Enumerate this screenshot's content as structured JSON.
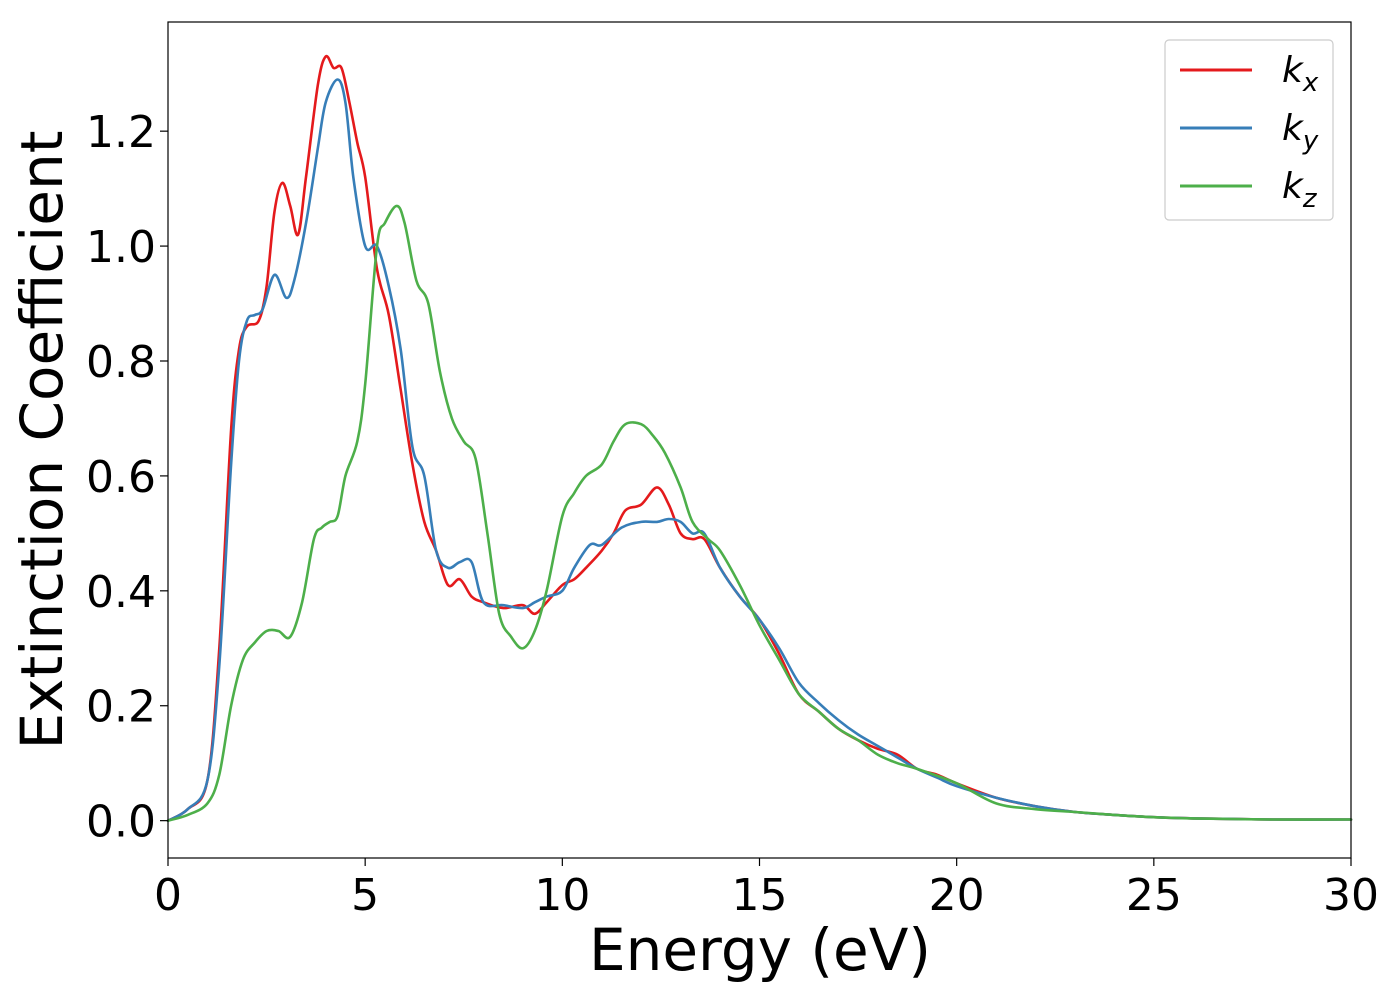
{
  "chart_data": {
    "type": "line",
    "title": "",
    "xlabel": "Energy (eV)",
    "ylabel": "Extinction Coefficient",
    "xlim": [
      0,
      30
    ],
    "ylim": [
      -0.065,
      1.39
    ],
    "xticks": [
      0,
      5,
      10,
      15,
      20,
      25,
      30
    ],
    "yticks": [
      0.0,
      0.2,
      0.4,
      0.6,
      0.8,
      1.0,
      1.2
    ],
    "xtick_labels": [
      "0",
      "5",
      "10",
      "15",
      "20",
      "25",
      "30"
    ],
    "ytick_labels": [
      "0.0",
      "0.2",
      "0.4",
      "0.6",
      "0.8",
      "1.0",
      "1.2"
    ],
    "grid": false,
    "legend_position": "top-right",
    "series": [
      {
        "name": "kx",
        "base": "k",
        "sub": "x",
        "color": "#e41a1c",
        "x": [
          0,
          0.5,
          1.0,
          1.3,
          1.6,
          1.8,
          2.0,
          2.3,
          2.5,
          2.7,
          2.9,
          3.1,
          3.3,
          3.5,
          3.8,
          4.0,
          4.2,
          4.4,
          4.6,
          4.8,
          5.0,
          5.3,
          5.6,
          5.9,
          6.2,
          6.5,
          6.8,
          7.1,
          7.4,
          7.7,
          8.0,
          8.5,
          9.0,
          9.3,
          9.6,
          10.0,
          10.3,
          10.6,
          11.0,
          11.3,
          11.6,
          12.0,
          12.4,
          12.7,
          13.0,
          13.3,
          13.6,
          14.0,
          14.5,
          15.0,
          15.5,
          16.0,
          16.5,
          17.0,
          17.5,
          18.0,
          18.5,
          19.0,
          19.5,
          20.0,
          21.0,
          22.0,
          23.0,
          24.0,
          25.0,
          26.0,
          27.0,
          28.0,
          30.0
        ],
        "y": [
          0.0,
          0.02,
          0.07,
          0.3,
          0.68,
          0.82,
          0.86,
          0.87,
          0.93,
          1.06,
          1.11,
          1.07,
          1.02,
          1.12,
          1.28,
          1.33,
          1.31,
          1.31,
          1.25,
          1.18,
          1.12,
          0.96,
          0.88,
          0.75,
          0.62,
          0.52,
          0.47,
          0.41,
          0.42,
          0.39,
          0.38,
          0.37,
          0.375,
          0.36,
          0.38,
          0.41,
          0.42,
          0.44,
          0.47,
          0.5,
          0.54,
          0.55,
          0.58,
          0.55,
          0.5,
          0.49,
          0.49,
          0.44,
          0.39,
          0.35,
          0.29,
          0.22,
          0.19,
          0.16,
          0.14,
          0.125,
          0.115,
          0.09,
          0.08,
          0.065,
          0.04,
          0.025,
          0.015,
          0.01,
          0.006,
          0.004,
          0.003,
          0.002,
          0.002
        ]
      },
      {
        "name": "ky",
        "base": "k",
        "sub": "y",
        "color": "#377eb8",
        "x": [
          0,
          0.5,
          1.0,
          1.3,
          1.6,
          1.8,
          2.0,
          2.2,
          2.4,
          2.7,
          3.0,
          3.2,
          3.5,
          3.8,
          4.0,
          4.3,
          4.5,
          4.7,
          5.0,
          5.3,
          5.6,
          5.9,
          6.2,
          6.5,
          6.8,
          7.1,
          7.4,
          7.7,
          8.0,
          8.5,
          9.0,
          9.3,
          9.6,
          10.0,
          10.3,
          10.7,
          11.0,
          11.5,
          12.0,
          12.4,
          12.7,
          13.0,
          13.3,
          13.6,
          14.0,
          14.5,
          15.0,
          15.5,
          16.0,
          16.5,
          17.0,
          17.5,
          18.0,
          18.5,
          19.0,
          19.5,
          20.0,
          21.0,
          22.0,
          23.0,
          24.0,
          25.0,
          26.0,
          27.0,
          28.0,
          30.0
        ],
        "y": [
          0.0,
          0.02,
          0.07,
          0.27,
          0.62,
          0.8,
          0.87,
          0.88,
          0.89,
          0.95,
          0.91,
          0.94,
          1.04,
          1.17,
          1.25,
          1.29,
          1.25,
          1.12,
          1.0,
          1.0,
          0.93,
          0.82,
          0.65,
          0.6,
          0.47,
          0.44,
          0.45,
          0.45,
          0.38,
          0.375,
          0.37,
          0.38,
          0.39,
          0.4,
          0.44,
          0.48,
          0.48,
          0.51,
          0.52,
          0.52,
          0.525,
          0.52,
          0.5,
          0.5,
          0.44,
          0.39,
          0.35,
          0.3,
          0.24,
          0.205,
          0.175,
          0.15,
          0.13,
          0.11,
          0.09,
          0.075,
          0.06,
          0.04,
          0.025,
          0.015,
          0.01,
          0.006,
          0.004,
          0.003,
          0.002,
          0.002
        ]
      },
      {
        "name": "kz",
        "base": "k",
        "sub": "z",
        "color": "#4daf4a",
        "x": [
          0,
          0.5,
          1.0,
          1.3,
          1.6,
          1.9,
          2.2,
          2.5,
          2.8,
          3.1,
          3.4,
          3.7,
          3.9,
          4.1,
          4.3,
          4.5,
          4.8,
          5.0,
          5.3,
          5.5,
          5.8,
          6.0,
          6.3,
          6.6,
          6.9,
          7.2,
          7.5,
          7.8,
          8.1,
          8.4,
          8.7,
          9.0,
          9.3,
          9.6,
          10.0,
          10.3,
          10.6,
          11.0,
          11.3,
          11.6,
          12.0,
          12.3,
          12.6,
          13.0,
          13.3,
          13.7,
          14.0,
          14.5,
          15.0,
          15.5,
          16.0,
          16.5,
          17.0,
          17.5,
          18.0,
          18.5,
          19.0,
          20.0,
          21.0,
          22.0,
          23.0,
          24.0,
          25.0,
          26.0,
          28.0,
          30.0
        ],
        "y": [
          0.0,
          0.01,
          0.03,
          0.08,
          0.2,
          0.28,
          0.31,
          0.33,
          0.33,
          0.32,
          0.38,
          0.49,
          0.51,
          0.52,
          0.53,
          0.6,
          0.66,
          0.76,
          1.0,
          1.04,
          1.07,
          1.04,
          0.94,
          0.9,
          0.78,
          0.7,
          0.66,
          0.63,
          0.5,
          0.36,
          0.32,
          0.3,
          0.33,
          0.4,
          0.53,
          0.57,
          0.6,
          0.62,
          0.66,
          0.69,
          0.69,
          0.67,
          0.64,
          0.58,
          0.52,
          0.49,
          0.47,
          0.41,
          0.34,
          0.28,
          0.22,
          0.19,
          0.16,
          0.14,
          0.115,
          0.1,
          0.09,
          0.065,
          0.03,
          0.02,
          0.015,
          0.01,
          0.006,
          0.004,
          0.002,
          0.002
        ]
      }
    ]
  }
}
